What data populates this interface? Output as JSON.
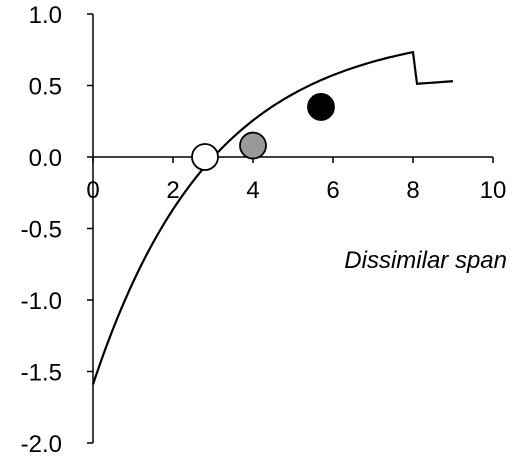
{
  "chart_data": {
    "type": "scatter",
    "title": "",
    "xlabel": "Dissimilar span",
    "ylabel": "",
    "xlim": [
      0,
      10
    ],
    "ylim": [
      -2.0,
      1.0
    ],
    "x_ticks": [
      "0",
      "2",
      "4",
      "6",
      "8",
      "10"
    ],
    "y_ticks": [
      "1.0",
      "0.5",
      "0.0",
      "-0.5",
      "-1.0",
      "-1.5",
      "-2.0"
    ],
    "grid": false,
    "legend": "none",
    "points": [
      {
        "x": 2.8,
        "y": 0.0,
        "fill": "#ffffff"
      },
      {
        "x": 4.0,
        "y": 0.08,
        "fill": "#999999"
      },
      {
        "x": 5.7,
        "y": 0.35,
        "fill": "#000000"
      }
    ],
    "fit_curve": {
      "form": "exponential saturation",
      "x": [
        0.0,
        0.5,
        1.0,
        1.5,
        2.0,
        2.5,
        3.0,
        3.5,
        4.0,
        4.5,
        5.0,
        5.5,
        6.0,
        6.5,
        7.0,
        7.5,
        8.0,
        8.5,
        9.0
      ],
      "y": [
        -1.59,
        -1.17,
        -0.82,
        -0.53,
        -0.29,
        -0.1,
        0.07,
        0.2,
        0.31,
        0.4,
        0.48,
        0.54,
        0.59,
        0.64,
        0.67,
        0.7,
        0.73,
        0.75,
        0.53
      ]
    }
  }
}
